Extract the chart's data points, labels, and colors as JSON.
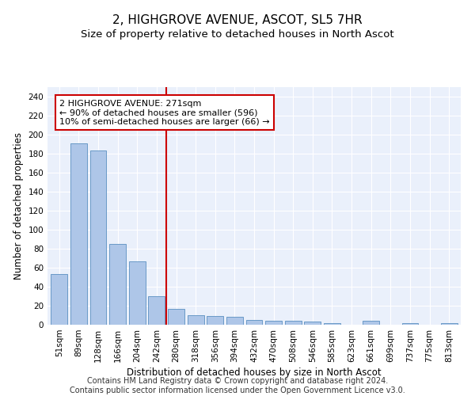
{
  "title": "2, HIGHGROVE AVENUE, ASCOT, SL5 7HR",
  "subtitle": "Size of property relative to detached houses in North Ascot",
  "xlabel": "Distribution of detached houses by size in North Ascot",
  "ylabel": "Number of detached properties",
  "categories": [
    "51sqm",
    "89sqm",
    "128sqm",
    "166sqm",
    "204sqm",
    "242sqm",
    "280sqm",
    "318sqm",
    "356sqm",
    "394sqm",
    "432sqm",
    "470sqm",
    "508sqm",
    "546sqm",
    "585sqm",
    "623sqm",
    "661sqm",
    "699sqm",
    "737sqm",
    "775sqm",
    "813sqm"
  ],
  "values": [
    53,
    191,
    183,
    85,
    67,
    30,
    17,
    10,
    9,
    8,
    5,
    4,
    4,
    3,
    2,
    0,
    4,
    0,
    2,
    0,
    2
  ],
  "bar_color": "#aec6e8",
  "bar_edge_color": "#5a8fc0",
  "vline_color": "#cc0000",
  "annotation_box_text": "2 HIGHGROVE AVENUE: 271sqm\n← 90% of detached houses are smaller (596)\n10% of semi-detached houses are larger (66) →",
  "annotation_box_color": "#cc0000",
  "ylim": [
    0,
    250
  ],
  "yticks": [
    0,
    20,
    40,
    60,
    80,
    100,
    120,
    140,
    160,
    180,
    200,
    220,
    240
  ],
  "background_color": "#eaf0fb",
  "grid_color": "#ffffff",
  "footer_line1": "Contains HM Land Registry data © Crown copyright and database right 2024.",
  "footer_line2": "Contains public sector information licensed under the Open Government Licence v3.0.",
  "title_fontsize": 11,
  "subtitle_fontsize": 9.5,
  "axis_label_fontsize": 8.5,
  "tick_fontsize": 7.5,
  "annotation_fontsize": 8,
  "footer_fontsize": 7
}
